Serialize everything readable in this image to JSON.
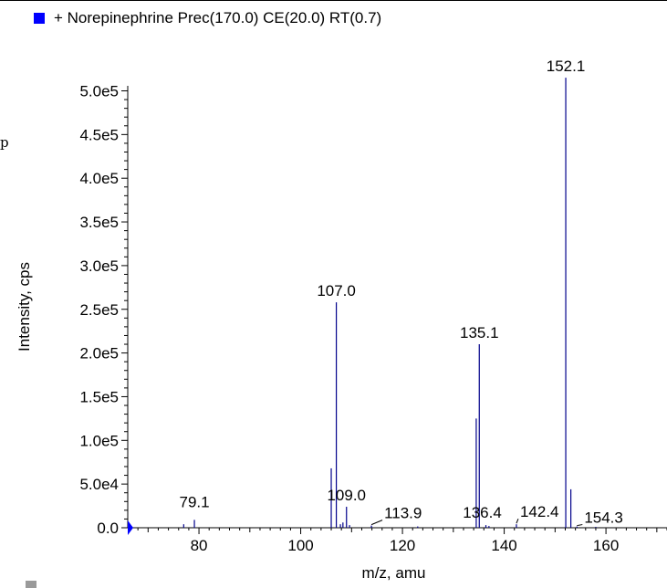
{
  "legend": {
    "label": "+ Norepinephrine Prec(170.0) CE(20.0) RT(0.7)",
    "swatch_color": "#0000ff"
  },
  "stray_glyph": "p",
  "chart_data": {
    "type": "bar",
    "title": "",
    "xlabel": "m/z, amu",
    "ylabel": "Intensity, cps",
    "xlim": [
      66,
      172
    ],
    "ylim": [
      0,
      530000
    ],
    "x_ticks": [
      80,
      100,
      120,
      140,
      160
    ],
    "x_tick_labels": [
      "80",
      "100",
      "120",
      "140",
      "160"
    ],
    "y_ticks": [
      0,
      50000,
      100000,
      150000,
      200000,
      250000,
      300000,
      350000,
      400000,
      450000,
      500000
    ],
    "y_tick_labels": [
      "0.0",
      "5.0e4",
      "1.0e5",
      "1.5e5",
      "2.0e5",
      "2.5e5",
      "3.0e5",
      "3.5e5",
      "4.0e5",
      "4.5e5",
      "5.0e5"
    ],
    "series": [
      {
        "color": "#00008b",
        "x": [
          77.0,
          79.1,
          106.0,
          107.0,
          107.8,
          108.3,
          109.0,
          109.6,
          113.9,
          123.0,
          134.5,
          135.1,
          136.4,
          137.0,
          142.4,
          152.1,
          153.1,
          154.3,
          158.0
        ],
        "values": [
          4000,
          9000,
          68000,
          258000,
          4000,
          6000,
          24000,
          3000,
          2500,
          1500,
          125000,
          210000,
          3000,
          2000,
          4000,
          515000,
          44000,
          1500,
          1000
        ]
      }
    ],
    "peak_labels": [
      {
        "x": 79.1,
        "y": 9000,
        "text": "79.1"
      },
      {
        "x": 107.0,
        "y": 258000,
        "text": "107.0"
      },
      {
        "x": 109.0,
        "y": 24000,
        "text": "109.0"
      },
      {
        "x": 113.9,
        "y": 2500,
        "text": "113.9"
      },
      {
        "x": 135.1,
        "y": 210000,
        "text": "135.1"
      },
      {
        "x": 136.4,
        "y": 3000,
        "text": "136.4"
      },
      {
        "x": 142.4,
        "y": 4000,
        "text": "142.4"
      },
      {
        "x": 152.1,
        "y": 515000,
        "text": "152.1"
      },
      {
        "x": 154.3,
        "y": 1500,
        "text": "154.3"
      }
    ]
  }
}
